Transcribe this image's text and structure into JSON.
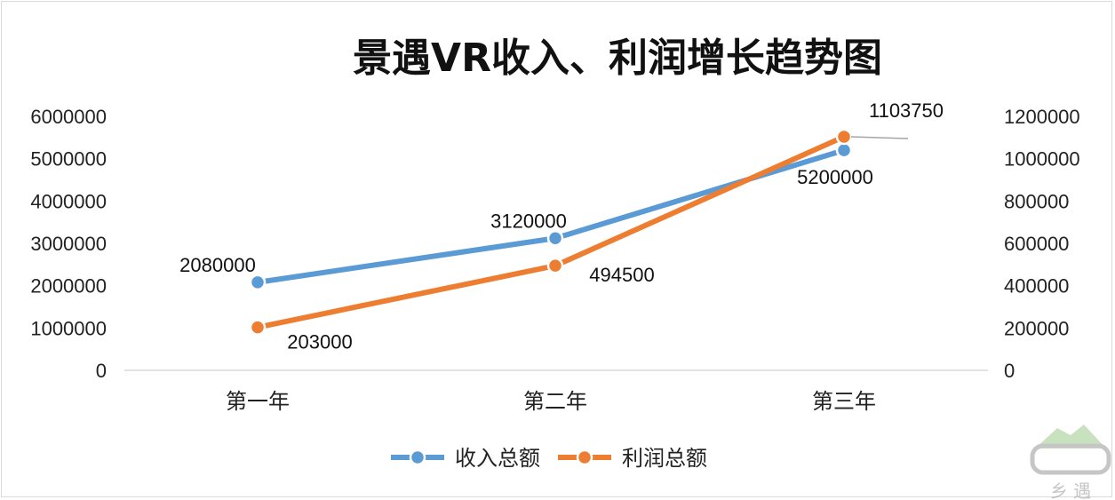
{
  "chart_data": {
    "type": "line",
    "title": "景遇VR收入、利润增长趋势图",
    "categories": [
      "第一年",
      "第二年",
      "第三年"
    ],
    "series": [
      {
        "name": "收入总额",
        "axis": "left",
        "values": [
          2080000,
          3120000,
          5200000
        ],
        "labels": [
          "2080000",
          "3120000",
          "5200000"
        ],
        "color": "#5b9bd5"
      },
      {
        "name": "利润总额",
        "axis": "right",
        "values": [
          203000,
          494500,
          1103750
        ],
        "labels": [
          "203000",
          "494500",
          "1103750"
        ],
        "color": "#ed7d31"
      }
    ],
    "left_axis": {
      "ylim": [
        0,
        6000000
      ],
      "ticks": [
        "0",
        "1000000",
        "2000000",
        "3000000",
        "4000000",
        "5000000",
        "6000000"
      ]
    },
    "right_axis": {
      "ylim": [
        0,
        1200000
      ],
      "ticks": [
        "0",
        "200000",
        "400000",
        "600000",
        "800000",
        "1000000",
        "1200000"
      ]
    },
    "grid": false,
    "legend": "bottom"
  },
  "watermark": {
    "text": "乡 遇"
  }
}
